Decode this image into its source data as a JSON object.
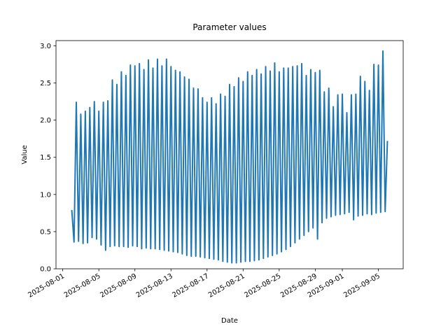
{
  "chart_data": {
    "type": "line",
    "title": "Parameter values",
    "x_label": "Date",
    "y_label": "Value",
    "color": "#1f77b4",
    "x": [
      "2025-08-02 00:00",
      "2025-08-02 06:00",
      "2025-08-02 12:00",
      "2025-08-02 18:00",
      "2025-08-03 00:00",
      "2025-08-03 06:00",
      "2025-08-03 12:00",
      "2025-08-03 18:00",
      "2025-08-04 00:00",
      "2025-08-04 06:00",
      "2025-08-04 12:00",
      "2025-08-04 18:00",
      "2025-08-05 00:00",
      "2025-08-05 06:00",
      "2025-08-05 12:00",
      "2025-08-05 18:00",
      "2025-08-06 00:00",
      "2025-08-06 06:00",
      "2025-08-06 12:00",
      "2025-08-06 18:00",
      "2025-08-07 00:00",
      "2025-08-07 06:00",
      "2025-08-07 12:00",
      "2025-08-07 18:00",
      "2025-08-08 00:00",
      "2025-08-08 06:00",
      "2025-08-08 12:00",
      "2025-08-08 18:00",
      "2025-08-09 00:00",
      "2025-08-09 06:00",
      "2025-08-09 12:00",
      "2025-08-09 18:00",
      "2025-08-10 00:00",
      "2025-08-10 06:00",
      "2025-08-10 12:00",
      "2025-08-10 18:00",
      "2025-08-11 00:00",
      "2025-08-11 06:00",
      "2025-08-11 12:00",
      "2025-08-11 18:00",
      "2025-08-12 00:00",
      "2025-08-12 06:00",
      "2025-08-12 12:00",
      "2025-08-12 18:00",
      "2025-08-13 00:00",
      "2025-08-13 06:00",
      "2025-08-13 12:00",
      "2025-08-13 18:00",
      "2025-08-14 00:00",
      "2025-08-14 06:00",
      "2025-08-14 12:00",
      "2025-08-14 18:00",
      "2025-08-15 00:00",
      "2025-08-15 06:00",
      "2025-08-15 12:00",
      "2025-08-15 18:00",
      "2025-08-16 00:00",
      "2025-08-16 06:00",
      "2025-08-16 12:00",
      "2025-08-16 18:00",
      "2025-08-17 00:00",
      "2025-08-17 06:00",
      "2025-08-17 12:00",
      "2025-08-17 18:00",
      "2025-08-18 00:00",
      "2025-08-18 06:00",
      "2025-08-18 12:00",
      "2025-08-18 18:00",
      "2025-08-19 00:00",
      "2025-08-19 06:00",
      "2025-08-19 12:00",
      "2025-08-19 18:00",
      "2025-08-20 00:00",
      "2025-08-20 06:00",
      "2025-08-20 12:00",
      "2025-08-20 18:00",
      "2025-08-21 00:00",
      "2025-08-21 06:00",
      "2025-08-21 12:00",
      "2025-08-21 18:00",
      "2025-08-22 00:00",
      "2025-08-22 06:00",
      "2025-08-22 12:00",
      "2025-08-22 18:00",
      "2025-08-23 00:00",
      "2025-08-23 06:00",
      "2025-08-23 12:00",
      "2025-08-23 18:00",
      "2025-08-24 00:00",
      "2025-08-24 06:00",
      "2025-08-24 12:00",
      "2025-08-24 18:00",
      "2025-08-25 00:00",
      "2025-08-25 06:00",
      "2025-08-25 12:00",
      "2025-08-25 18:00",
      "2025-08-26 00:00",
      "2025-08-26 06:00",
      "2025-08-26 12:00",
      "2025-08-26 18:00",
      "2025-08-27 00:00",
      "2025-08-27 06:00",
      "2025-08-27 12:00",
      "2025-08-27 18:00",
      "2025-08-28 00:00",
      "2025-08-28 06:00",
      "2025-08-28 12:00",
      "2025-08-28 18:00",
      "2025-08-29 00:00",
      "2025-08-29 06:00",
      "2025-08-29 12:00",
      "2025-08-29 18:00",
      "2025-08-30 00:00",
      "2025-08-30 06:00",
      "2025-08-30 12:00",
      "2025-08-30 18:00",
      "2025-08-31 00:00",
      "2025-08-31 06:00",
      "2025-08-31 12:00",
      "2025-08-31 18:00",
      "2025-09-01 00:00",
      "2025-09-01 06:00",
      "2025-09-01 12:00",
      "2025-09-01 18:00",
      "2025-09-02 00:00",
      "2025-09-02 06:00",
      "2025-09-02 12:00",
      "2025-09-02 18:00",
      "2025-09-03 00:00",
      "2025-09-03 06:00",
      "2025-09-03 12:00",
      "2025-09-03 18:00",
      "2025-09-04 00:00",
      "2025-09-04 06:00",
      "2025-09-04 12:00",
      "2025-09-04 18:00",
      "2025-09-05 00:00",
      "2025-09-05 06:00",
      "2025-09-05 12:00",
      "2025-09-05 18:00",
      "2025-09-06 00:00"
    ],
    "values": [
      0.79,
      0.36,
      2.24,
      0.37,
      2.08,
      0.34,
      2.12,
      0.35,
      2.17,
      0.42,
      2.25,
      0.4,
      2.12,
      0.32,
      2.24,
      0.25,
      2.26,
      0.3,
      2.54,
      0.31,
      2.48,
      0.3,
      2.65,
      0.3,
      2.6,
      0.29,
      2.74,
      0.31,
      2.73,
      0.3,
      2.76,
      0.27,
      2.68,
      0.28,
      2.81,
      0.27,
      2.7,
      0.27,
      2.82,
      0.26,
      2.73,
      0.25,
      2.82,
      0.24,
      2.72,
      0.23,
      2.67,
      0.22,
      2.65,
      0.2,
      2.58,
      0.18,
      2.55,
      0.17,
      2.43,
      0.17,
      2.42,
      0.16,
      2.3,
      0.15,
      2.24,
      0.14,
      2.3,
      0.13,
      2.22,
      0.12,
      2.35,
      0.1,
      2.32,
      0.09,
      2.48,
      0.08,
      2.45,
      0.08,
      2.57,
      0.09,
      2.52,
      0.1,
      2.65,
      0.1,
      2.6,
      0.11,
      2.68,
      0.12,
      2.62,
      0.14,
      2.72,
      0.16,
      2.66,
      0.18,
      2.77,
      0.2,
      2.65,
      0.23,
      2.7,
      0.26,
      2.7,
      0.3,
      2.72,
      0.35,
      2.73,
      0.4,
      2.76,
      0.45,
      2.6,
      0.5,
      2.68,
      0.55,
      2.64,
      0.4,
      2.67,
      0.62,
      2.38,
      0.68,
      2.43,
      0.7,
      2.18,
      0.72,
      2.34,
      0.73,
      2.35,
      0.74,
      2.1,
      0.76,
      2.34,
      0.66,
      2.35,
      0.71,
      2.59,
      0.72,
      2.52,
      0.74,
      2.4,
      0.73,
      2.75,
      0.75,
      2.74,
      0.76,
      2.93,
      0.77,
      1.72
    ],
    "xlim": [
      "2025-07-31 06:00",
      "2025-09-07 18:00"
    ],
    "xticks": [
      "2025-08-01",
      "2025-08-05",
      "2025-08-09",
      "2025-08-13",
      "2025-08-17",
      "2025-08-21",
      "2025-08-25",
      "2025-08-29",
      "2025-09-01",
      "2025-09-05"
    ],
    "ylim": [
      0,
      3.07
    ],
    "yticks": [
      {
        "value": 0,
        "label": "0.0"
      },
      {
        "value": 0.5,
        "label": "0.5"
      },
      {
        "value": 1,
        "label": "1.0"
      },
      {
        "value": 1.5,
        "label": "1.5"
      },
      {
        "value": 2,
        "label": "2.0"
      },
      {
        "value": 2.5,
        "label": "2.5"
      },
      {
        "value": 3,
        "label": "3.0"
      }
    ],
    "grid": false
  }
}
